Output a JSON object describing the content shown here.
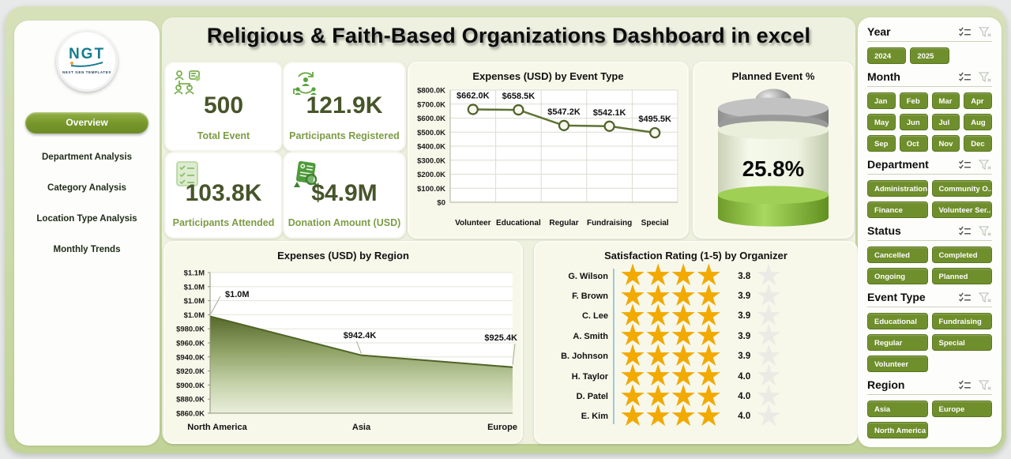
{
  "header": {
    "title": "Religious & Faith-Based Organizations Dashboard in excel"
  },
  "sidebar": {
    "logo": {
      "text": "NGT",
      "subtext": "NEXT GEN TEMPLATES"
    },
    "items": [
      {
        "label": "Overview",
        "active": true
      },
      {
        "label": "Department Analysis",
        "active": false
      },
      {
        "label": "Category Analysis",
        "active": false
      },
      {
        "label": "Location Type Analysis",
        "active": false
      },
      {
        "label": "Monthly Trends",
        "active": false
      }
    ]
  },
  "kpis": [
    {
      "icon": "org-network-icon",
      "value": "500",
      "label": "Total Event"
    },
    {
      "icon": "people-cycle-icon",
      "value": "121.9K",
      "label": "Participants Registered"
    },
    {
      "icon": "checklist-icon",
      "value": "103.8K",
      "label": "Participants Attended"
    },
    {
      "icon": "donation-doc-icon",
      "value": "$4.9M",
      "label": "Donation Amount (USD)"
    }
  ],
  "chart_data": [
    {
      "type": "line",
      "title": "Expenses (USD) by Event Type",
      "categories": [
        "Volunteer",
        "Educational",
        "Regular",
        "Fundraising",
        "Special"
      ],
      "values": [
        662000,
        658500,
        547200,
        542100,
        495500
      ],
      "labels": [
        "$662.0K",
        "$658.5K",
        "$547.2K",
        "$542.1K",
        "$495.5K"
      ],
      "ylim": [
        0,
        800000
      ],
      "ytick_step": 100000,
      "ytick_labels": [
        "$0",
        "$100.0K",
        "$200.0K",
        "$300.0K",
        "$400.0K",
        "$500.0K",
        "$600.0K",
        "$700.0K",
        "$800.0K"
      ],
      "grid": true,
      "line_color": "#5e7233"
    },
    {
      "type": "gauge",
      "title": "Planned Event %",
      "value": 25.8,
      "label": "25.8%",
      "fill_color": "#7fba33"
    },
    {
      "type": "area",
      "title": "Expenses (USD) by Region",
      "categories": [
        "North America",
        "Asia",
        "Europe"
      ],
      "values": [
        997700,
        942400,
        925400
      ],
      "labels": [
        "$1.0M",
        "$942.4K",
        "$925.4K"
      ],
      "ylim": [
        860000,
        1060000
      ],
      "ytick_step": 20000,
      "ytick_labels": [
        "$860.0K",
        "$880.0K",
        "$900.0K",
        "$920.0K",
        "$940.0K",
        "$960.0K",
        "$980.0K",
        "$1.0M",
        "$1.0M",
        "$1.0M",
        "$1.1M"
      ],
      "grid": true,
      "area_top_color": "#57682b",
      "area_bottom_color": "#e9eedb"
    },
    {
      "type": "stars",
      "title": "Satisfaction Rating (1-5) by Organizer",
      "full_stars": 4,
      "star_color": "#f2a900",
      "rows": [
        {
          "name": "G. Wilson",
          "value": "3.8"
        },
        {
          "name": "F. Brown",
          "value": "3.9"
        },
        {
          "name": "C. Lee",
          "value": "3.9"
        },
        {
          "name": "A. Smith",
          "value": "3.9"
        },
        {
          "name": "B. Johnson",
          "value": "3.9"
        },
        {
          "name": "H. Taylor",
          "value": "4.0"
        },
        {
          "name": "D. Patel",
          "value": "4.0"
        },
        {
          "name": "E. Kim",
          "value": "4.0"
        }
      ]
    }
  ],
  "filters": [
    {
      "label": "Year",
      "cols": 3,
      "buttons": [
        "2024",
        "2025"
      ]
    },
    {
      "label": "Month",
      "cols": 4,
      "buttons": [
        "Jan",
        "Feb",
        "Mar",
        "Apr",
        "May",
        "Jun",
        "Jul",
        "Aug",
        "Sep",
        "Oct",
        "Nov",
        "Dec"
      ]
    },
    {
      "label": "Department",
      "cols": 2,
      "buttons": [
        "Administration",
        "Community O...",
        "Finance",
        "Volunteer Ser..."
      ]
    },
    {
      "label": "Status",
      "cols": 2,
      "buttons": [
        "Cancelled",
        "Completed",
        "Ongoing",
        "Planned"
      ]
    },
    {
      "label": "Event Type",
      "cols": 2,
      "buttons": [
        "Educational",
        "Fundraising",
        "Regular",
        "Special",
        "Volunteer"
      ]
    },
    {
      "label": "Region",
      "cols": 2,
      "buttons": [
        "Asia",
        "Europe",
        "North America"
      ]
    }
  ],
  "filter_header_icons": [
    "multiselect-icon",
    "clear-filter-icon"
  ],
  "colors": {
    "accent_olive": "#6f8e2c",
    "panel_green": "#cbdaa6",
    "kpi_value": "#47552a",
    "kpi_label": "#7d9c46",
    "star_gold": "#f2a900",
    "battery_green": "#7fba33"
  }
}
